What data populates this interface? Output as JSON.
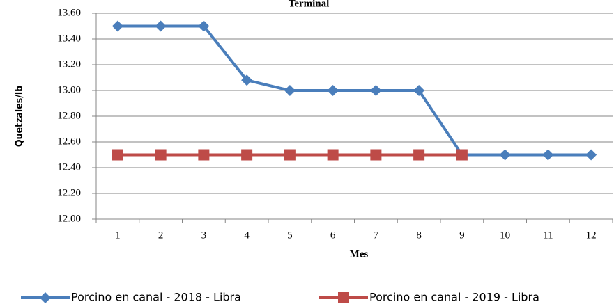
{
  "chart_data": {
    "type": "line",
    "title": "Terminal",
    "x_label": "Mes",
    "y_label": "Quetzales/lb",
    "categories": [
      "1",
      "2",
      "3",
      "4",
      "5",
      "6",
      "7",
      "8",
      "9",
      "10",
      "11",
      "12"
    ],
    "series": [
      {
        "name": "Porcino en canal - 2018 - Libra",
        "color": "#4a7ebb",
        "marker": "diamond",
        "values": [
          13.5,
          13.5,
          13.5,
          13.08,
          13.0,
          13.0,
          13.0,
          13.0,
          12.5,
          12.5,
          12.5,
          12.5
        ]
      },
      {
        "name": "Porcino en canal - 2019 - Libra",
        "color": "#be4b48",
        "marker": "square",
        "values": [
          12.5,
          12.5,
          12.5,
          12.5,
          12.5,
          12.5,
          12.5,
          12.5,
          12.5,
          null,
          null,
          null
        ]
      }
    ],
    "ylim": [
      12.0,
      13.6
    ],
    "yticks": [
      {
        "value": 12.0,
        "label": "12.00"
      },
      {
        "value": 12.2,
        "label": "12.20"
      },
      {
        "value": 12.4,
        "label": "12.40"
      },
      {
        "value": 12.6,
        "label": "12.60"
      },
      {
        "value": 12.8,
        "label": "12.80"
      },
      {
        "value": 13.0,
        "label": "13.00"
      },
      {
        "value": 13.2,
        "label": "13.20"
      },
      {
        "value": 13.4,
        "label": "13.40"
      },
      {
        "value": 13.6,
        "label": "13.60"
      }
    ],
    "grid": true,
    "legend": "bottom"
  }
}
